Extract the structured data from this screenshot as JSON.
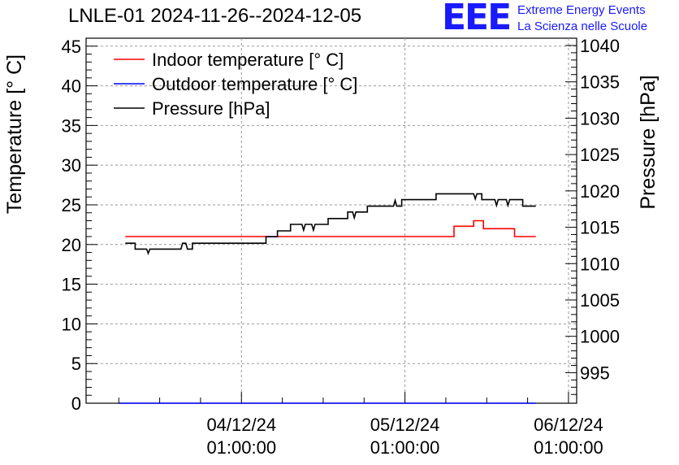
{
  "header": {
    "title": "LNLE-01 2024-11-26--2024-12-05",
    "logo_text": "EEE",
    "logo_line1": "Extreme Energy Events",
    "logo_line2": "La Scienza nelle Scuole"
  },
  "colors": {
    "indoor": "#ff0000",
    "outdoor": "#0000ff",
    "pressure": "#000000",
    "logo": "#1a1aff"
  },
  "chart_data": {
    "type": "line",
    "title": "LNLE-01 2024-11-26--2024-12-05",
    "ylabel": "Temperature [° C]",
    "y2label": "Pressure [hPa]",
    "ylim": [
      0,
      46
    ],
    "y2lim": [
      990.8,
      1041
    ],
    "xlim_days": [
      -0.95,
      2.05
    ],
    "yticks": [
      0,
      5,
      10,
      15,
      20,
      25,
      30,
      35,
      40,
      45
    ],
    "y2ticks": [
      995,
      1000,
      1005,
      1010,
      1015,
      1020,
      1025,
      1030,
      1035,
      1040
    ],
    "xticks": [
      {
        "day": 0,
        "label_date": "04/12/24",
        "label_time": "01:00:00"
      },
      {
        "day": 1,
        "label_date": "05/12/24",
        "label_time": "01:00:00"
      },
      {
        "day": 2,
        "label_date": "06/12/24",
        "label_time": "01:00:00"
      }
    ],
    "grid": true,
    "legend_position": "top-left",
    "series": [
      {
        "name": "Indoor temperature [° C]",
        "axis": "left",
        "points": [
          [
            -0.71,
            21
          ],
          [
            0.3,
            21
          ],
          [
            1.3,
            21
          ],
          [
            1.3,
            22.3
          ],
          [
            1.42,
            22.3
          ],
          [
            1.42,
            23
          ],
          [
            1.48,
            23
          ],
          [
            1.48,
            22
          ],
          [
            1.67,
            22
          ],
          [
            1.67,
            21
          ],
          [
            1.8,
            21
          ]
        ]
      },
      {
        "name": "Outdoor temperature [° C]",
        "axis": "left",
        "points": [
          [
            -0.75,
            0
          ],
          [
            1.8,
            0
          ]
        ]
      },
      {
        "name": "Pressure [hPa]",
        "axis": "right",
        "points": [
          [
            -0.71,
            1012.8
          ],
          [
            -0.65,
            1012.8
          ],
          [
            -0.65,
            1012
          ],
          [
            -0.58,
            1012
          ],
          [
            -0.57,
            1011.4
          ],
          [
            -0.56,
            1012
          ],
          [
            -0.37,
            1012
          ],
          [
            -0.36,
            1012.8
          ],
          [
            -0.34,
            1012.8
          ],
          [
            -0.33,
            1012
          ],
          [
            -0.3,
            1012
          ],
          [
            -0.3,
            1012.8
          ],
          [
            0.15,
            1012.8
          ],
          [
            0.15,
            1013.7
          ],
          [
            0.22,
            1013.7
          ],
          [
            0.22,
            1014.5
          ],
          [
            0.3,
            1014.5
          ],
          [
            0.3,
            1015.4
          ],
          [
            0.37,
            1015.4
          ],
          [
            0.38,
            1014.6
          ],
          [
            0.39,
            1015.4
          ],
          [
            0.43,
            1015.4
          ],
          [
            0.44,
            1014.6
          ],
          [
            0.45,
            1015.4
          ],
          [
            0.53,
            1015.4
          ],
          [
            0.53,
            1016.2
          ],
          [
            0.65,
            1016.2
          ],
          [
            0.65,
            1017.1
          ],
          [
            0.68,
            1017.1
          ],
          [
            0.69,
            1016.3
          ],
          [
            0.7,
            1017.1
          ],
          [
            0.77,
            1017.1
          ],
          [
            0.77,
            1017.9
          ],
          [
            0.93,
            1017.9
          ],
          [
            0.94,
            1018.7
          ],
          [
            0.95,
            1017.9
          ],
          [
            0.98,
            1017.9
          ],
          [
            0.98,
            1018.8
          ],
          [
            1.19,
            1018.8
          ],
          [
            1.19,
            1019.6
          ],
          [
            1.42,
            1019.6
          ],
          [
            1.43,
            1018.9
          ],
          [
            1.44,
            1019.6
          ],
          [
            1.47,
            1019.6
          ],
          [
            1.47,
            1018.8
          ],
          [
            1.55,
            1018.8
          ],
          [
            1.56,
            1018
          ],
          [
            1.57,
            1018.8
          ],
          [
            1.62,
            1018.8
          ],
          [
            1.63,
            1018
          ],
          [
            1.64,
            1018.8
          ],
          [
            1.72,
            1018.8
          ],
          [
            1.72,
            1017.9
          ],
          [
            1.8,
            1017.9
          ]
        ]
      }
    ]
  }
}
